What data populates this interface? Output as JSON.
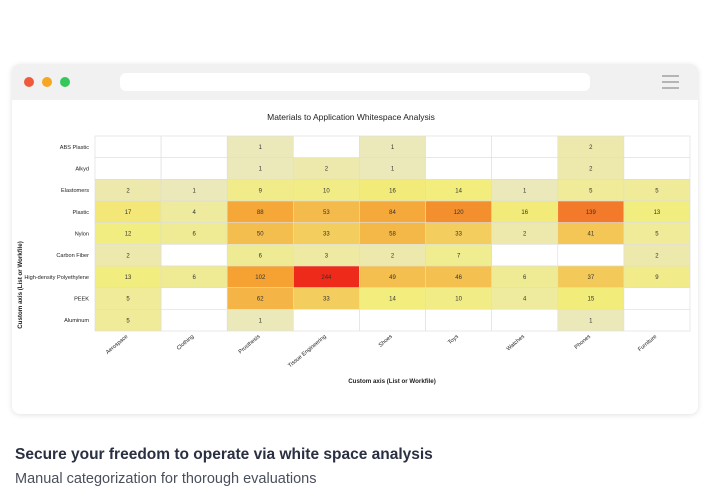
{
  "colors": {
    "low": "#e9e7cd",
    "mid": "#f2ed7c",
    "high": "#f5a031",
    "max": "#ee2a1a",
    "empty": "#ffffff",
    "grid": "#dddddd"
  },
  "window": {
    "traffic_lights": [
      "#ef5a3c",
      "#f5a623",
      "#34c759"
    ],
    "menu_icon": "hamburger-icon"
  },
  "chart_data": {
    "type": "heatmap",
    "title": "Materials to Application Whitespace Analysis",
    "xlabel": "Custom axis (List or Workfile)",
    "ylabel": "Custom axis (List or Workfile)",
    "x": [
      "Aerospace",
      "Clothing",
      "Prosthesis",
      "Tissue Engineering",
      "Shoes",
      "Toys",
      "Watches",
      "Phones",
      "Furniture"
    ],
    "y": [
      "ABS Plastic",
      "Alkyd",
      "Elastomers",
      "Plastic",
      "Nylon",
      "Carbon Fiber",
      "High-density Polyethylene",
      "PEEK",
      "Aluminum"
    ],
    "values": [
      [
        null,
        null,
        1,
        null,
        1,
        null,
        null,
        2,
        null
      ],
      [
        null,
        null,
        1,
        2,
        1,
        null,
        null,
        2,
        null
      ],
      [
        2,
        1,
        9,
        10,
        16,
        14,
        1,
        5,
        5
      ],
      [
        17,
        4,
        88,
        53,
        84,
        120,
        16,
        139,
        13
      ],
      [
        12,
        6,
        50,
        33,
        58,
        33,
        2,
        41,
        5
      ],
      [
        2,
        null,
        6,
        3,
        2,
        7,
        null,
        null,
        2
      ],
      [
        13,
        6,
        102,
        244,
        49,
        46,
        6,
        37,
        9
      ],
      [
        5,
        null,
        62,
        33,
        14,
        10,
        4,
        15,
        null
      ],
      [
        5,
        null,
        1,
        null,
        null,
        null,
        null,
        1,
        null
      ]
    ],
    "grid": true,
    "legend": "none"
  },
  "caption": {
    "title": "Secure your freedom to operate via white space analysis",
    "subtitle": "Manual categorization for thorough evaluations"
  }
}
